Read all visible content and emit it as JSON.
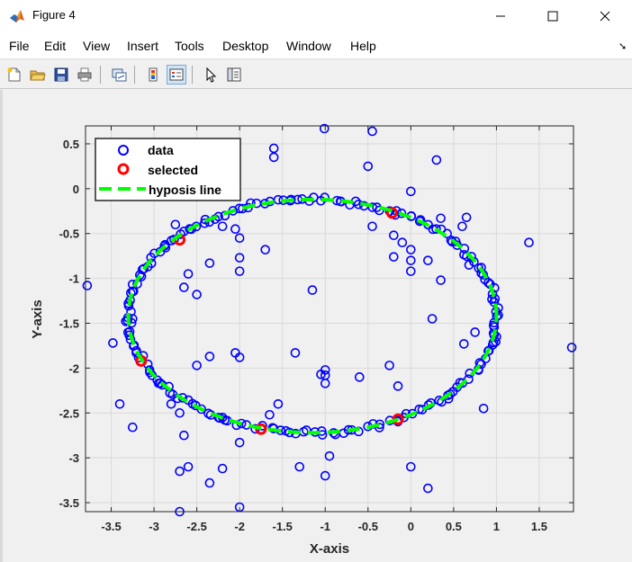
{
  "window": {
    "title": "Figure 4",
    "icon": "matlab-logo-icon",
    "controls": [
      "minimize-icon",
      "maximize-icon",
      "close-icon"
    ]
  },
  "menu": [
    "File",
    "Edit",
    "View",
    "Insert",
    "Tools",
    "Desktop",
    "Window",
    "Help"
  ],
  "toolbar": {
    "buttons": [
      "new-figure-icon",
      "open-file-icon",
      "save-icon",
      "print-icon",
      "link-plot-icon",
      "insert-colorbar-icon",
      "insert-legend-icon",
      "edit-plot-icon",
      "property-inspector-icon"
    ],
    "pressed": "insert-legend-icon"
  },
  "colors": {
    "data": "#0000ff",
    "selected": "#ff0000",
    "hypothesis_line": "#00ff00",
    "grid": "#d9d9d9"
  },
  "chart_data": {
    "type": "scatter",
    "title": "",
    "xlabel": "X-axis",
    "ylabel": "Y-axis",
    "xlim": [
      -3.8,
      1.9
    ],
    "ylim": [
      -3.6,
      0.7
    ],
    "xticks": [
      "-3.5",
      "-3",
      "-2.5",
      "-2",
      "-1.5",
      "-1",
      "-0.5",
      "0",
      "0.5",
      "1",
      "1.5"
    ],
    "yticks": [
      "0.5",
      "0",
      "-0.5",
      "-1",
      "-1.5",
      "-2",
      "-2.5",
      "-3",
      "-3.5"
    ],
    "grid": true,
    "legend": {
      "placement": "top-left",
      "entries": [
        "data",
        "selected",
        "hyposis line"
      ]
    },
    "series": [
      {
        "name": "data",
        "marker": "circle",
        "ellipse_samples": {
          "center": [
            -1.15,
            -1.42
          ],
          "semi_axes": [
            2.15,
            1.3
          ],
          "count": 200
        },
        "outliers": [
          [
            -1.01,
            0.67
          ],
          [
            -0.45,
            0.64
          ],
          [
            -1.6,
            0.45
          ],
          [
            -1.6,
            0.35
          ],
          [
            0.3,
            0.32
          ],
          [
            -0.5,
            0.25
          ],
          [
            0.0,
            -0.03
          ],
          [
            -2.75,
            -0.4
          ],
          [
            -2.2,
            -0.42
          ],
          [
            -2.05,
            -0.45
          ],
          [
            -2.0,
            -0.55
          ],
          [
            -1.7,
            -0.68
          ],
          [
            -0.45,
            -0.42
          ],
          [
            -0.2,
            -0.52
          ],
          [
            0.35,
            -0.33
          ],
          [
            0.65,
            -0.32
          ],
          [
            0.6,
            -0.42
          ],
          [
            1.38,
            -0.6
          ],
          [
            -0.1,
            -0.6
          ],
          [
            0.0,
            -0.68
          ],
          [
            0.2,
            -0.8
          ],
          [
            0.0,
            -0.8
          ],
          [
            -0.2,
            -0.76
          ],
          [
            0.0,
            -0.92
          ],
          [
            -2.35,
            -0.83
          ],
          [
            -2.0,
            -0.77
          ],
          [
            -2.0,
            -0.92
          ],
          [
            -2.6,
            -0.95
          ],
          [
            -2.65,
            -1.1
          ],
          [
            -2.5,
            -1.18
          ],
          [
            0.35,
            -1.02
          ],
          [
            0.68,
            -0.85
          ],
          [
            -1.15,
            -1.13
          ],
          [
            -3.78,
            -1.08
          ],
          [
            -3.25,
            -1.45
          ],
          [
            -3.48,
            -1.72
          ],
          [
            0.25,
            -1.45
          ],
          [
            0.62,
            -1.73
          ],
          [
            0.75,
            -1.6
          ],
          [
            1.0,
            -1.65
          ],
          [
            -1.35,
            -1.83
          ],
          [
            -2.05,
            -1.83
          ],
          [
            -2.0,
            -1.88
          ],
          [
            -2.35,
            -1.87
          ],
          [
            -2.5,
            -1.97
          ],
          [
            -0.25,
            -1.97
          ],
          [
            -1.0,
            -2.02
          ],
          [
            -1.0,
            -2.08
          ],
          [
            -1.05,
            -2.07
          ],
          [
            -1.0,
            -2.17
          ],
          [
            -0.6,
            -2.1
          ],
          [
            -0.15,
            -2.2
          ],
          [
            -3.4,
            -2.4
          ],
          [
            -2.8,
            -2.4
          ],
          [
            -2.7,
            -2.5
          ],
          [
            -1.55,
            -2.4
          ],
          [
            -1.65,
            -2.52
          ],
          [
            -2.2,
            -2.55
          ],
          [
            0.85,
            -2.45
          ],
          [
            -3.25,
            -2.66
          ],
          [
            -2.65,
            -2.75
          ],
          [
            -2.0,
            -2.83
          ],
          [
            -0.95,
            -2.98
          ],
          [
            0.0,
            -3.1
          ],
          [
            -2.6,
            -3.1
          ],
          [
            -2.7,
            -3.15
          ],
          [
            -1.3,
            -3.1
          ],
          [
            -2.2,
            -3.12
          ],
          [
            -2.35,
            -3.28
          ],
          [
            -1.0,
            -3.2
          ],
          [
            0.2,
            -3.34
          ],
          [
            -2.0,
            -3.55
          ],
          [
            -2.7,
            -3.6
          ],
          [
            1.88,
            -1.77
          ]
        ]
      },
      {
        "name": "selected",
        "marker": "circle",
        "points": [
          [
            -2.7,
            -0.57
          ],
          [
            -0.22,
            -0.27
          ],
          [
            -3.15,
            -1.92
          ],
          [
            -1.75,
            -2.68
          ],
          [
            -0.15,
            -2.57
          ]
        ]
      },
      {
        "name": "hyposis line",
        "style": "dashed",
        "ellipse": {
          "center": [
            -1.15,
            -1.42
          ],
          "semi_axes": [
            2.15,
            1.3
          ]
        }
      }
    ]
  }
}
